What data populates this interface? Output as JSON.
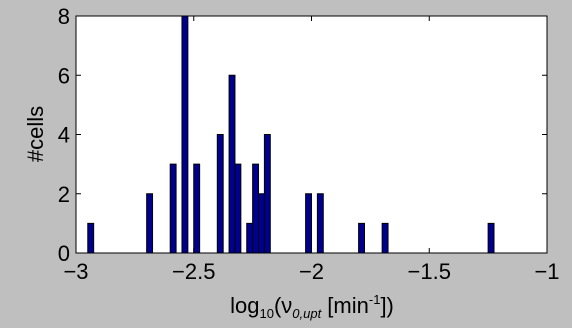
{
  "chart_data": {
    "type": "bar",
    "title": "",
    "xlabel": {
      "base": "log",
      "base_subscript": "10",
      "open": "(ν",
      "nu_subscript": "0,upt",
      "unit_open": " [min",
      "unit_exponent": "-1",
      "close": "])"
    },
    "ylabel": "#cells",
    "xlim": [
      -3,
      -1
    ],
    "ylim": [
      0,
      8
    ],
    "xticks": [
      -3,
      -2.5,
      -2,
      -1.5,
      -1
    ],
    "xtick_labels": [
      "−3",
      "−2.5",
      "−2",
      "−1.5",
      "−1"
    ],
    "yticks": [
      0,
      2,
      4,
      6,
      8
    ],
    "ytick_labels": [
      "0",
      "2",
      "4",
      "6",
      "8"
    ],
    "bin_width": 0.025,
    "bins": [
      {
        "center": -2.9375,
        "count": 1
      },
      {
        "center": -2.6875,
        "count": 2
      },
      {
        "center": -2.5875,
        "count": 3
      },
      {
        "center": -2.5375,
        "count": 8
      },
      {
        "center": -2.4875,
        "count": 3
      },
      {
        "center": -2.3875,
        "count": 4
      },
      {
        "center": -2.3375,
        "count": 6
      },
      {
        "center": -2.3125,
        "count": 3
      },
      {
        "center": -2.2625,
        "count": 1
      },
      {
        "center": -2.2375,
        "count": 3
      },
      {
        "center": -2.2125,
        "count": 2
      },
      {
        "center": -2.1875,
        "count": 4
      },
      {
        "center": -2.0125,
        "count": 2
      },
      {
        "center": -1.9625,
        "count": 2
      },
      {
        "center": -1.7875,
        "count": 1
      },
      {
        "center": -1.6875,
        "count": 1
      },
      {
        "center": -1.2375,
        "count": 1
      }
    ],
    "bar_color": "#00008f",
    "bar_edge_color": "#000000",
    "plot_background": "#ffffff",
    "figure_background": "#bfbfbf",
    "grid": false,
    "legend": "none"
  }
}
